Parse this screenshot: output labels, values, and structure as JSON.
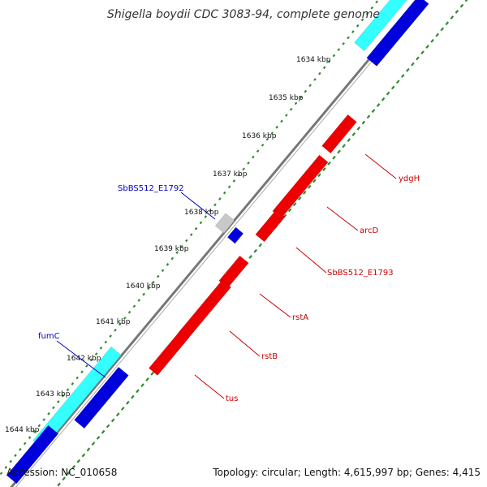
{
  "title": "Shigella boydii CDC 3083-94, complete genome",
  "footer": {
    "accession": "Accession: NC_010658",
    "topology": "Topology: circular; Length: 4,615,997 bp; Genes: 4,415"
  },
  "colors": {
    "background": "#ffffff",
    "backbone": "#808080",
    "tick_dots": "#2e8b2e",
    "forward_cds": "#0000dd",
    "forward_rna": "#33ffff",
    "reverse_cds": "#ee0000",
    "pseudo": "#c8c8c8",
    "forward_label": "#0000cc",
    "reverse_label": "#cc0000"
  },
  "kbp_ticks": [
    "1634 kbp",
    "1635 kbp",
    "1636 kbp",
    "1637 kbp",
    "1638 kbp",
    "1639 kbp",
    "1640 kbp",
    "1641 kbp",
    "1642 kbp",
    "1643 kbp",
    "1644 kbp"
  ],
  "forward_labels": [
    "SbBS512_E1792",
    "fumC"
  ],
  "reverse_labels": [
    "ydgH",
    "arcD",
    "SbBS512_E1793",
    "rstA",
    "rstB",
    "tus"
  ]
}
